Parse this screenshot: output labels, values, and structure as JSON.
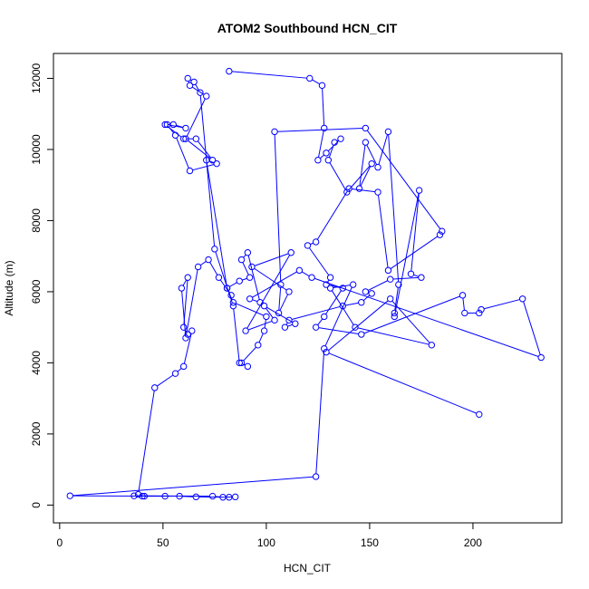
{
  "chart_data": {
    "type": "line",
    "title": "ATOM2 Southbound HCN_CIT",
    "xlabel": "HCN_CIT",
    "ylabel": "Altitude (m)",
    "xlim": [
      -3,
      243
    ],
    "ylim": [
      -500,
      12700
    ],
    "xticks": [
      0,
      50,
      100,
      150,
      200
    ],
    "yticks": [
      0,
      2000,
      4000,
      6000,
      8000,
      10000,
      12000
    ],
    "marker": "open-circle",
    "grid": false,
    "legend": "none",
    "series": [
      {
        "color": "#0000ff",
        "x": [
          82,
          121,
          127,
          128,
          125,
          129,
          136,
          133,
          130,
          139,
          151,
          145,
          148,
          154,
          159,
          164,
          162,
          162,
          174,
          170,
          175,
          160,
          148,
          151,
          146,
          137,
          111,
          109,
          114,
          99,
          104,
          90,
          112,
          93,
          111,
          106,
          107,
          104,
          148,
          185,
          184,
          159,
          154,
          140,
          124,
          120,
          131,
          129,
          137,
          128,
          124,
          146,
          195,
          196,
          203,
          204,
          224,
          233,
          122,
          116,
          92,
          97,
          91,
          88,
          92,
          87,
          81,
          71,
          76,
          63,
          56,
          52,
          61,
          55,
          51,
          60,
          66,
          74,
          61,
          71,
          63,
          62,
          65,
          68,
          75,
          84,
          87,
          91,
          88,
          96,
          99,
          100,
          84,
          81,
          83,
          77,
          72,
          67,
          61,
          59,
          62,
          60,
          62,
          64,
          60,
          56,
          46,
          38,
          41,
          40,
          51,
          36,
          74,
          79,
          85,
          82,
          66,
          58,
          5,
          124,
          128,
          142,
          131,
          143,
          180,
          160,
          129,
          203
        ],
        "y": [
          12200,
          12000,
          11800,
          10600,
          9700,
          9900,
          10300,
          10200,
          9700,
          8800,
          9600,
          8900,
          10200,
          9500,
          10500,
          6200,
          5400,
          5300,
          8850,
          6500,
          6400,
          6350,
          6000,
          5950,
          5700,
          5600,
          5200,
          5000,
          5100,
          5600,
          5200,
          4900,
          7100,
          6700,
          6000,
          5400,
          6200,
          10500,
          10600,
          7700,
          7600,
          6600,
          8800,
          8900,
          7400,
          7300,
          6400,
          6200,
          6100,
          5300,
          5000,
          4800,
          5900,
          5400,
          5400,
          5500,
          5800,
          4150,
          6400,
          6600,
          5800,
          5700,
          7100,
          6900,
          6400,
          6300,
          6100,
          9700,
          9600,
          9400,
          10400,
          10700,
          10600,
          10700,
          10700,
          10300,
          10300,
          9700,
          10300,
          11500,
          11800,
          12000,
          11900,
          11600,
          7200,
          5600,
          4000,
          3900,
          4000,
          4500,
          4900,
          5300,
          5700,
          6100,
          5900,
          6400,
          6900,
          6700,
          4700,
          6100,
          6400,
          5000,
          4800,
          4900,
          3900,
          3700,
          3300,
          300,
          250,
          250,
          250,
          260,
          250,
          220,
          230,
          220,
          230,
          250,
          260,
          800,
          4400,
          6200,
          6100,
          5000,
          4500,
          5800,
          4300,
          2550
        ]
      }
    ]
  }
}
